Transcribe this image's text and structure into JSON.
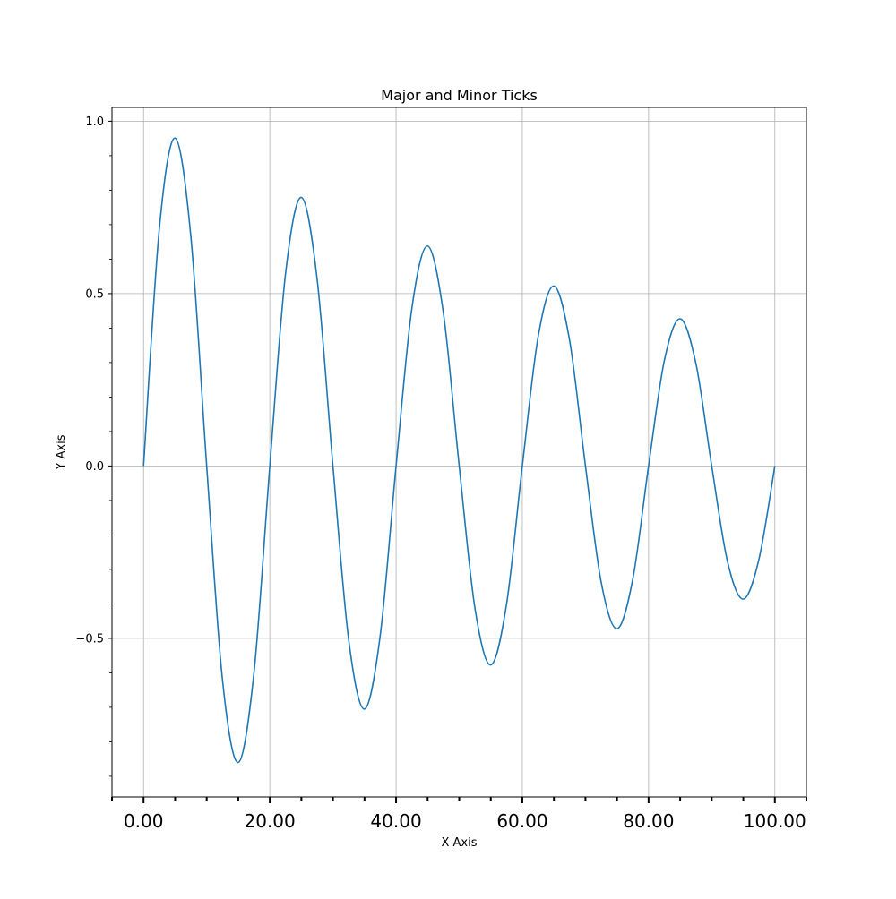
{
  "chart_data": {
    "type": "line",
    "title": "Major and Minor Ticks",
    "xlabel": "X Axis",
    "ylabel": "Y Axis",
    "xlim": [
      -5,
      105
    ],
    "ylim": [
      -0.96,
      1.04
    ],
    "grid": true,
    "x_major_ticks": [
      0,
      20,
      40,
      60,
      80,
      100
    ],
    "x_major_tick_labels": [
      "0.00",
      "20.00",
      "40.00",
      "60.00",
      "80.00",
      "100.00"
    ],
    "x_minor_ticks": [
      -5,
      5,
      10,
      15,
      25,
      30,
      35,
      45,
      50,
      55,
      65,
      70,
      75,
      85,
      90,
      95,
      105
    ],
    "y_major_ticks": [
      -0.5,
      0,
      0.5,
      1
    ],
    "y_major_tick_labels": [
      "−0.5",
      "0.0",
      "0.5",
      "1.0"
    ],
    "y_minor_ticks": [
      -0.9,
      -0.8,
      -0.7,
      -0.6,
      -0.4,
      -0.3,
      -0.2,
      -0.1,
      0.1,
      0.2,
      0.3,
      0.4,
      0.6,
      0.7,
      0.8,
      0.9
    ],
    "series": [
      {
        "color": "#1f77b4",
        "x": [
          0,
          2.5,
          5,
          7.5,
          10,
          12.5,
          15,
          17.5,
          20,
          22.5,
          25,
          27.5,
          30,
          32.5,
          35,
          37.5,
          40,
          42.5,
          45,
          47.5,
          50,
          52.5,
          55,
          57.5,
          60,
          62.5,
          65,
          67.5,
          70,
          72.5,
          75,
          77.5,
          80,
          82.5,
          85,
          87.5,
          90,
          92.5,
          95,
          97.5,
          100
        ],
        "y": [
          0,
          0.688,
          0.951,
          0.664,
          0,
          -0.62,
          -0.86,
          -0.598,
          0,
          0.559,
          0.779,
          0.541,
          0,
          -0.505,
          -0.705,
          -0.49,
          0,
          0.457,
          0.638,
          0.443,
          0,
          -0.413,
          -0.577,
          -0.401,
          0,
          0.374,
          0.522,
          0.363,
          0,
          -0.338,
          -0.472,
          -0.328,
          0,
          0.306,
          0.427,
          0.297,
          0,
          -0.277,
          -0.386,
          -0.269,
          0
        ]
      }
    ]
  }
}
